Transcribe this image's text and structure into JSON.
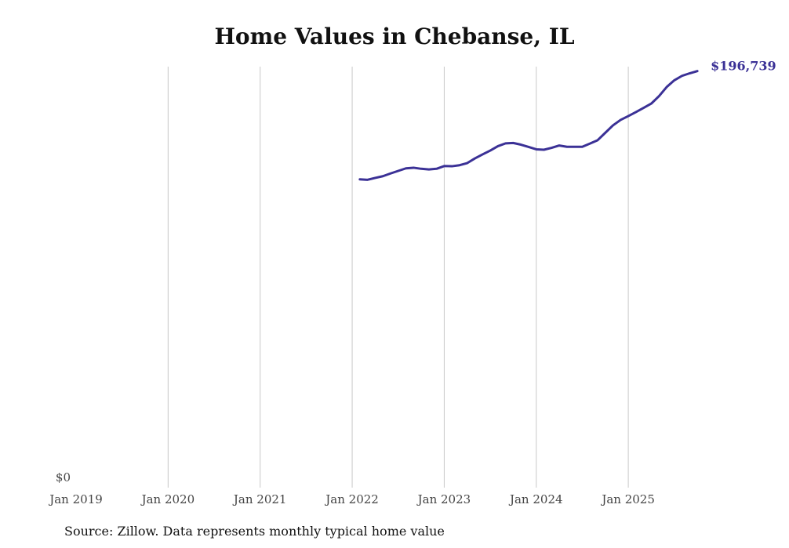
{
  "chart_data": {
    "type": "line",
    "title": "Home Values in Chebanse, IL",
    "source": "Source: Zillow. Data represents monthly typical home value",
    "xlabel": "",
    "ylabel": "",
    "x_ticks": [
      "Jan 2019",
      "Jan 2020",
      "Jan 2021",
      "Jan 2022",
      "Jan 2023",
      "Jan 2024",
      "Jan 2025"
    ],
    "y_ticks": [
      "$0"
    ],
    "ylim": [
      0,
      196739
    ],
    "xlim": [
      "2019-01",
      "2025-10"
    ],
    "grid": "vertical",
    "line_color": "#3b3196",
    "end_label": "$196,739",
    "series": [
      {
        "name": "Typical home value",
        "start": "2022-02",
        "frequency": "monthly",
        "values": [
          145600,
          145400,
          146300,
          147100,
          148400,
          149600,
          150800,
          151100,
          150600,
          150300,
          150600,
          151900,
          151800,
          152300,
          153300,
          155500,
          157400,
          159200,
          161300,
          162600,
          162800,
          162000,
          160900,
          159800,
          159600,
          160500,
          161600,
          161000,
          161000,
          161000,
          162500,
          164100,
          167600,
          171100,
          173700,
          175500,
          177400,
          179400,
          181400,
          184900,
          189200,
          192400,
          194500,
          195700,
          196739
        ]
      }
    ]
  }
}
